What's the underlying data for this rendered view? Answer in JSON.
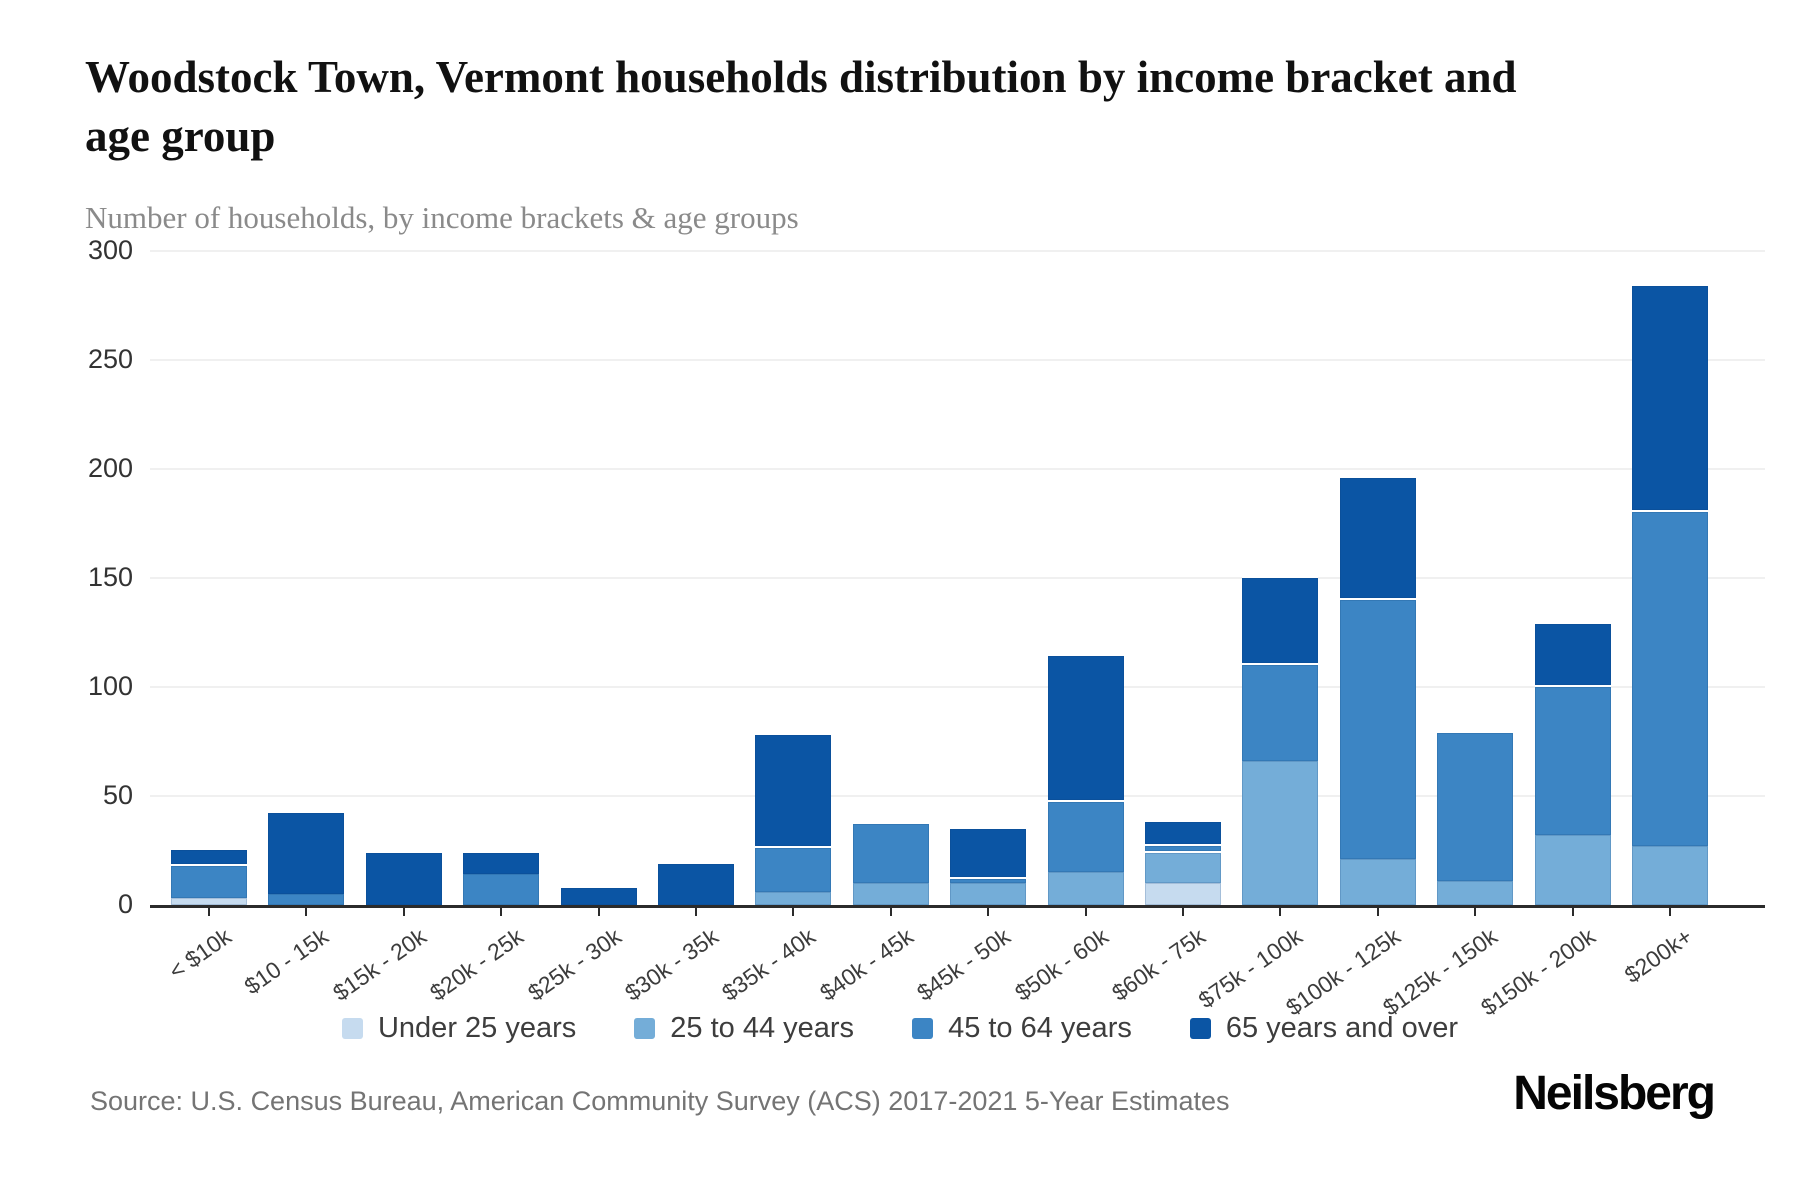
{
  "header": {
    "title": "Woodstock Town, Vermont households distribution by income bracket and age group",
    "subtitle": "Number of households, by income brackets & age groups"
  },
  "chart_data": {
    "type": "bar",
    "stacked": true,
    "title": "Woodstock Town, Vermont households distribution by income bracket and age group",
    "xlabel": "",
    "ylabel": "Number of households",
    "categories": [
      "< $10k",
      "$10 - 15k",
      "$15k - 20k",
      "$20k - 25k",
      "$25k - 30k",
      "$30k - 35k",
      "$35k - 40k",
      "$40k - 45k",
      "$45k - 50k",
      "$50k - 60k",
      "$60k - 75k",
      "$75k - 100k",
      "$100k - 125k",
      "$125k - 150k",
      "$150k - 200k",
      "$200k+"
    ],
    "series": [
      {
        "name": "Under 25 years",
        "color": "#c6dbef",
        "values": [
          3,
          0,
          0,
          0,
          0,
          0,
          0,
          0,
          0,
          0,
          10,
          0,
          0,
          0,
          0,
          0
        ]
      },
      {
        "name": "25 to 44 years",
        "color": "#74add8",
        "values": [
          0,
          0,
          0,
          0,
          0,
          0,
          6,
          10,
          10,
          15,
          15,
          66,
          21,
          11,
          32,
          27
        ]
      },
      {
        "name": "45 to 64 years",
        "color": "#3c85c4",
        "values": [
          16,
          5,
          0,
          14,
          0,
          0,
          21,
          28,
          3,
          33,
          3,
          45,
          120,
          69,
          69,
          154
        ]
      },
      {
        "name": "65 years and over",
        "color": "#0b55a4",
        "values": [
          7,
          38,
          24,
          11,
          8,
          19,
          52,
          0,
          23,
          67,
          11,
          40,
          56,
          0,
          29,
          104
        ]
      }
    ],
    "totals": [
      26,
      43,
      24,
      25,
      8,
      19,
      79,
      38,
      36,
      115,
      39,
      151,
      197,
      80,
      130,
      285
    ],
    "ylim": [
      0,
      300
    ],
    "yticks": [
      0,
      50,
      100,
      150,
      200,
      250,
      300
    ],
    "grid": true,
    "legend_position": "bottom"
  },
  "source": {
    "text": "Source: U.S. Census Bureau, American Community Survey (ACS) 2017-2021 5-Year Estimates"
  },
  "brand": {
    "logo_text": "Neilsberg"
  }
}
